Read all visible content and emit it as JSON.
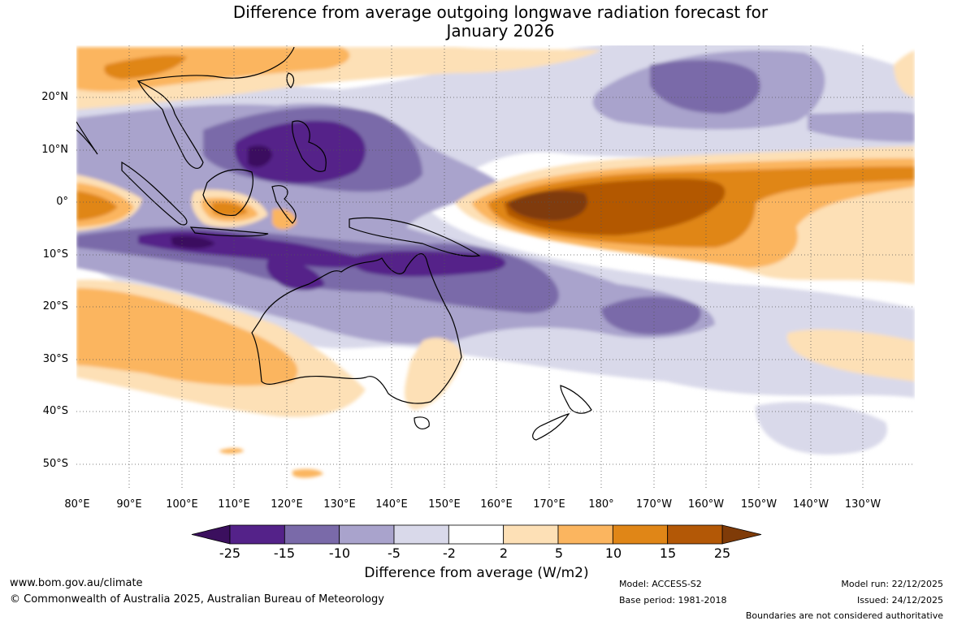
{
  "title_line1": "Difference from average outgoing longwave radiation forecast for",
  "title_line2": "January 2026",
  "lat_labels": [
    "20°N",
    "10°N",
    "0°",
    "10°S",
    "20°S",
    "30°S",
    "40°S",
    "50°S"
  ],
  "lon_labels": [
    "80°E",
    "90°E",
    "100°E",
    "110°E",
    "120°E",
    "130°E",
    "140°E",
    "150°E",
    "160°E",
    "170°E",
    "180°",
    "170°W",
    "160°W",
    "150°W",
    "140°W",
    "130°W"
  ],
  "colorbar": {
    "ticks": [
      "-25",
      "-15",
      "-10",
      "-5",
      "-2",
      "2",
      "5",
      "10",
      "15",
      "25"
    ],
    "colors": [
      "#3b0f5e",
      "#542289",
      "#7a6aa9",
      "#a9a3cc",
      "#d9d9ea",
      "#ffffff",
      "#fde0b6",
      "#fbb55f",
      "#e08617",
      "#b35806",
      "#7f3b08"
    ],
    "title": "Difference from average (W/m2)"
  },
  "footer": {
    "url": "www.bom.gov.au/climate",
    "copyright": "© Commonwealth of Australia 2025, Australian Bureau of Meteorology",
    "model": "Model: ACCESS-S2",
    "base_period": "Base period: 1981-2018",
    "model_run": "Model run: 22/12/2025",
    "issued": "Issued: 24/12/2025",
    "disclaimer": "Boundaries are not considered authoritative"
  }
}
